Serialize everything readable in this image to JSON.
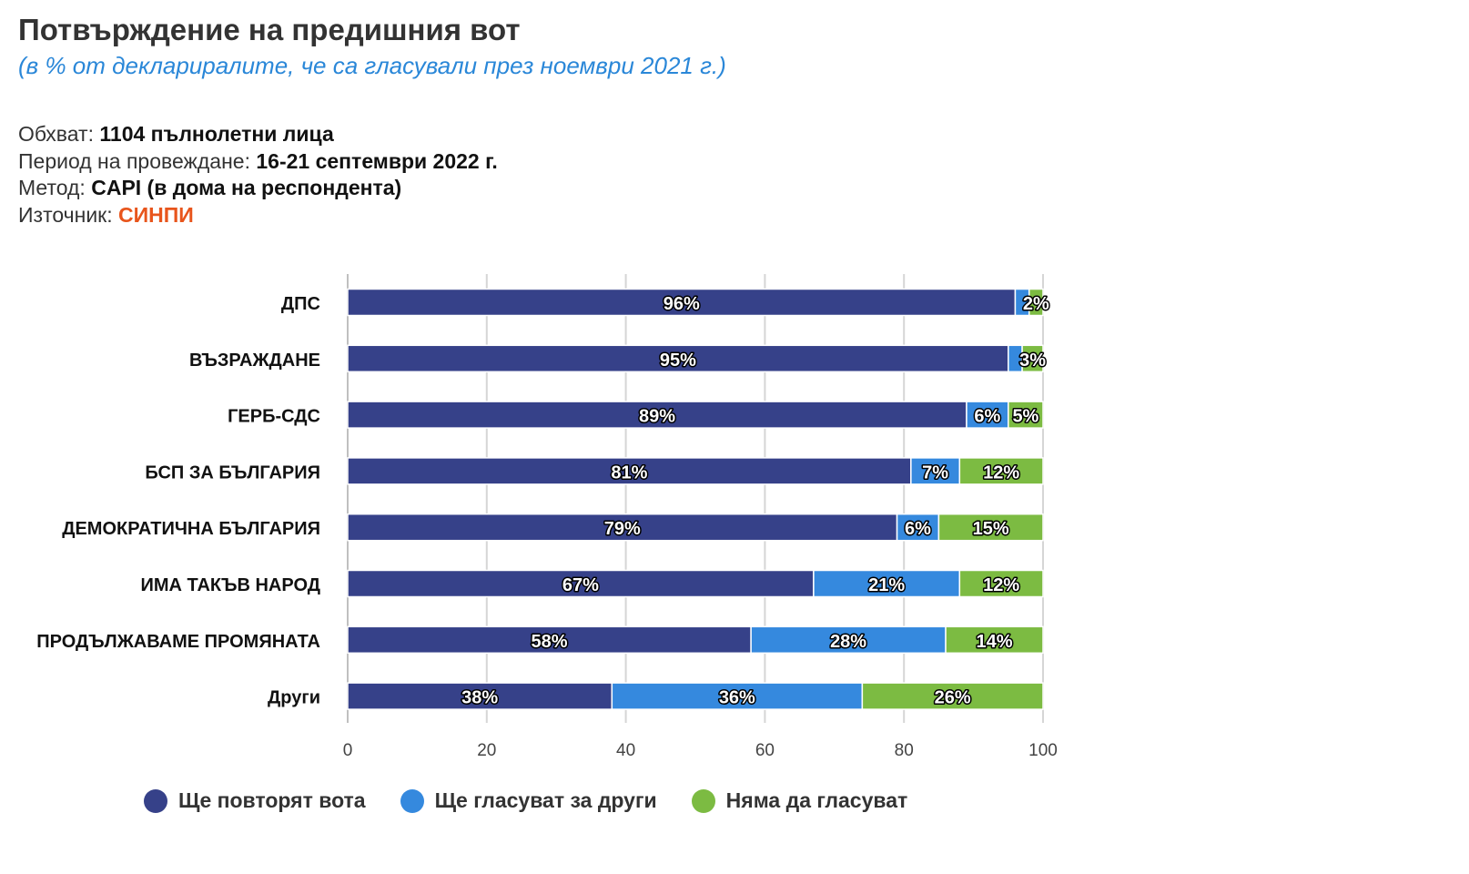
{
  "header": {
    "title": "Потвърждение на предишния вот",
    "subtitle": "(в % от деклариралите, че са гласували през ноември 2021 г.)"
  },
  "meta": {
    "coverage_label": "Обхват:",
    "coverage_value": "1104 пълнолетни лица",
    "period_label": "Период на провеждане:",
    "period_value": "16-21 септември 2022 г.",
    "method_label": "Метод:",
    "method_value": "CAPI (в дома на респондента)",
    "source_label": "Източник:",
    "source_value": "СИНПИ"
  },
  "chart_data": {
    "type": "bar",
    "orientation": "horizontal",
    "stacked": true,
    "categories": [
      "ДПС",
      "ВЪЗРАЖДАНЕ",
      "ГЕРБ-СДС",
      "БСП ЗА БЪЛГАРИЯ",
      "ДЕМОКРАТИЧНА БЪЛГАРИЯ",
      "ИМА ТАКЪВ НАРОД",
      "ПРОДЪЛЖАВАМЕ ПРОМЯНАТА",
      "Други"
    ],
    "series": [
      {
        "name": "Ще повторят вота",
        "color": "#364189",
        "values": [
          96,
          95,
          89,
          81,
          79,
          67,
          58,
          38
        ]
      },
      {
        "name": "Ще гласуват за други",
        "color": "#3589de",
        "values": [
          2,
          2,
          6,
          7,
          6,
          21,
          28,
          36
        ]
      },
      {
        "name": "Няма да гласуват",
        "color": "#7cbb42",
        "values": [
          2,
          3,
          5,
          12,
          15,
          12,
          14,
          26
        ]
      }
    ],
    "data_labels": [
      [
        "96%",
        "",
        "2%"
      ],
      [
        "95%",
        "",
        "3%"
      ],
      [
        "89%",
        "6%",
        "5%"
      ],
      [
        "81%",
        "7%",
        "12%"
      ],
      [
        "79%",
        "6%",
        "15%"
      ],
      [
        "67%",
        "21%",
        "12%"
      ],
      [
        "58%",
        "28%",
        "14%"
      ],
      [
        "38%",
        "36%",
        "26%"
      ]
    ],
    "x_ticks": [
      0,
      20,
      40,
      60,
      80,
      100
    ],
    "xlim": [
      0,
      100
    ],
    "grid": true,
    "legend_position": "bottom"
  }
}
